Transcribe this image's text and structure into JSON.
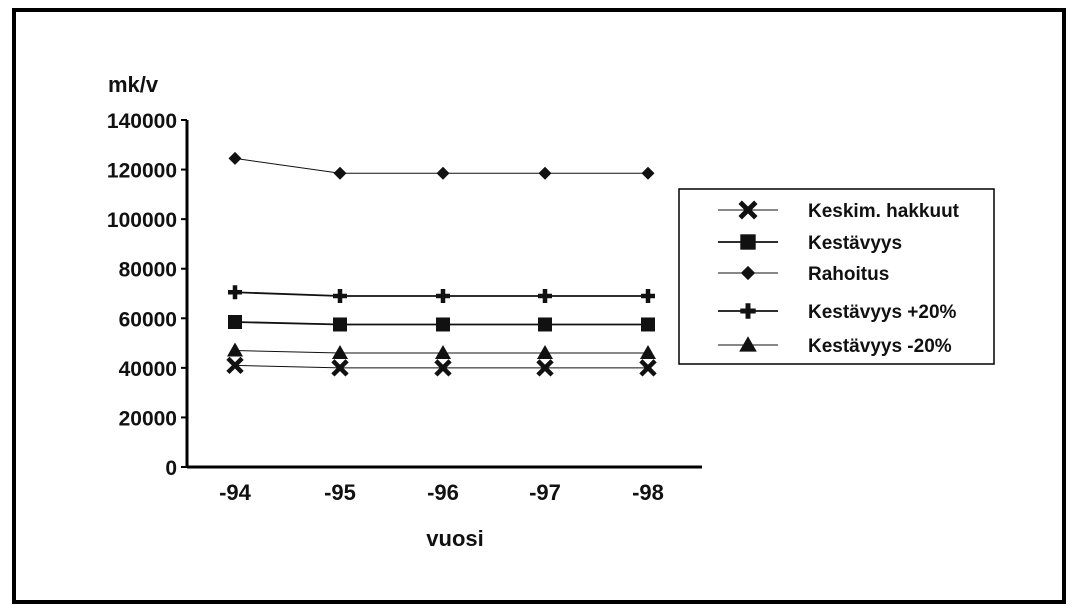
{
  "chart_data": {
    "type": "line",
    "title": "",
    "ylabel": "mk/v",
    "xlabel": "vuosi",
    "categories": [
      "-94",
      "-95",
      "-96",
      "-97",
      "-98"
    ],
    "ylim": [
      0,
      140000
    ],
    "yticks": [
      "0",
      "20000",
      "40000",
      "60000",
      "80000",
      "100000",
      "120000",
      "140000"
    ],
    "grid": false,
    "legend_position": "right",
    "series": [
      {
        "name": "Keskim. hakkuut",
        "marker": "x",
        "values": [
          41000,
          40000,
          40000,
          40000,
          40000
        ]
      },
      {
        "name": "Kestävyys",
        "marker": "square",
        "values": [
          58500,
          57500,
          57500,
          57500,
          57500
        ]
      },
      {
        "name": "Rahoitus",
        "marker": "diamond",
        "values": [
          124500,
          118500,
          118500,
          118500,
          118500
        ]
      },
      {
        "name": "Kestävyys +20%",
        "marker": "plus",
        "values": [
          70500,
          69000,
          69000,
          69000,
          69000
        ]
      },
      {
        "name": "Kestävyys -20%",
        "marker": "triangle",
        "values": [
          47000,
          46000,
          46000,
          46000,
          46000
        ]
      }
    ]
  }
}
